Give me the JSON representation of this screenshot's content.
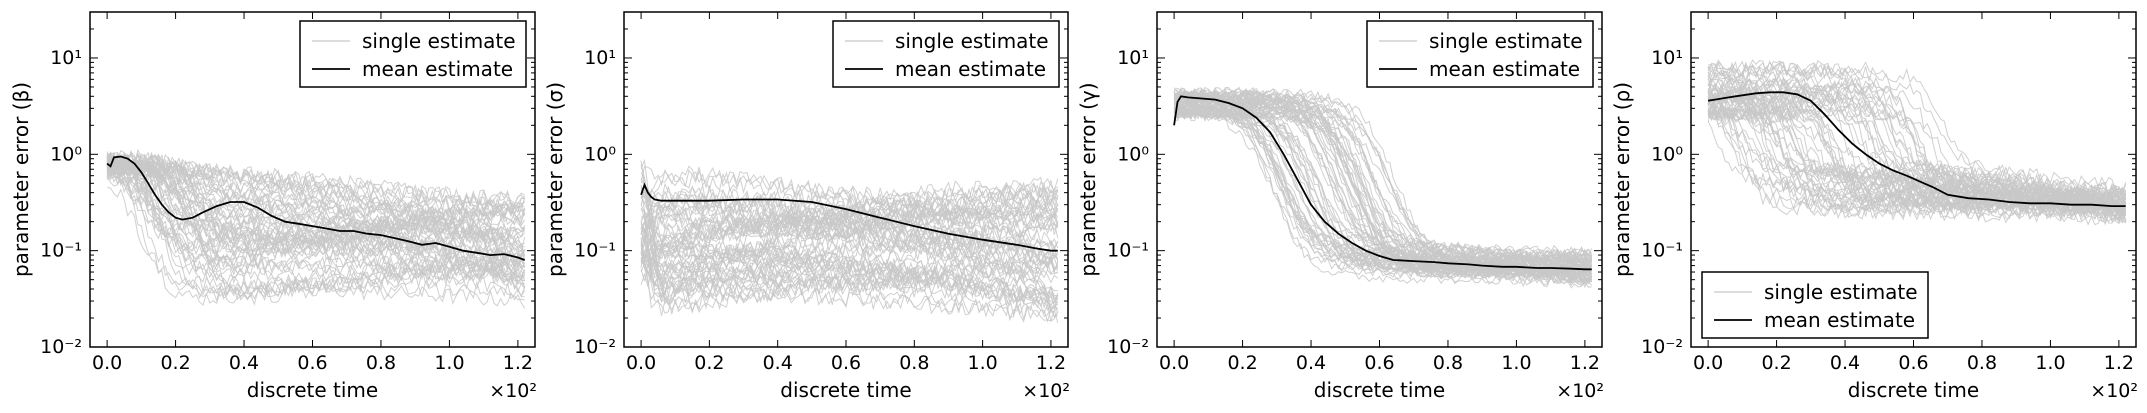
{
  "colors": {
    "single": "#c8c8c8",
    "mean": "#000000"
  },
  "chart_data": [
    {
      "type": "line",
      "xlabel": "discrete time",
      "ylabel": "parameter error (β)",
      "xscale_label": "×10²",
      "yscale": "log",
      "ylim": [
        0.01,
        30
      ],
      "xlim": [
        -5,
        125
      ],
      "xticks": [
        0,
        20,
        40,
        60,
        80,
        100,
        120
      ],
      "xtick_labels": [
        "0.0",
        "0.2",
        "0.4",
        "0.6",
        "0.8",
        "1.0",
        "1.2"
      ],
      "yticks": [
        0.01,
        0.1,
        1,
        10
      ],
      "ytick_labels": [
        "10⁻²",
        "10⁻¹",
        "10⁰",
        "10¹"
      ],
      "legend": [
        "single estimate",
        "mean estimate"
      ],
      "legend_position": "top-right",
      "series": [
        {
          "name": "mean estimate",
          "x": [
            0,
            1,
            2,
            4,
            6,
            8,
            10,
            12,
            14,
            16,
            18,
            20,
            22,
            25,
            28,
            32,
            36,
            40,
            44,
            48,
            52,
            56,
            60,
            64,
            68,
            72,
            76,
            80,
            84,
            88,
            92,
            96,
            100,
            104,
            108,
            112,
            116,
            120,
            122
          ],
          "y": [
            0.8,
            0.75,
            0.93,
            0.95,
            0.9,
            0.8,
            0.65,
            0.5,
            0.38,
            0.3,
            0.25,
            0.22,
            0.21,
            0.22,
            0.25,
            0.29,
            0.32,
            0.32,
            0.28,
            0.23,
            0.2,
            0.19,
            0.18,
            0.17,
            0.16,
            0.16,
            0.15,
            0.145,
            0.135,
            0.125,
            0.115,
            0.12,
            0.11,
            0.1,
            0.095,
            0.09,
            0.092,
            0.085,
            0.08
          ]
        }
      ],
      "single": {
        "count": 60,
        "x_end": 122,
        "noise": 0.2,
        "start": [
          0.7,
          0.95
        ],
        "drop_time": [
          8,
          30
        ],
        "drop_width": 4,
        "mid": [
          0.02,
          0.8
        ],
        "end": [
          0.03,
          0.35
        ]
      }
    },
    {
      "type": "line",
      "xlabel": "discrete time",
      "ylabel": "parameter error (σ)",
      "xscale_label": "×10²",
      "yscale": "log",
      "ylim": [
        0.01,
        30
      ],
      "xlim": [
        -5,
        125
      ],
      "xticks": [
        0,
        20,
        40,
        60,
        80,
        100,
        120
      ],
      "xtick_labels": [
        "0.0",
        "0.2",
        "0.4",
        "0.6",
        "0.8",
        "1.0",
        "1.2"
      ],
      "yticks": [
        0.01,
        0.1,
        1,
        10
      ],
      "ytick_labels": [
        "10⁻²",
        "10⁻¹",
        "10⁰",
        "10¹"
      ],
      "legend": [
        "single estimate",
        "mean estimate"
      ],
      "legend_position": "top-right",
      "series": [
        {
          "name": "mean estimate",
          "x": [
            0,
            1,
            2,
            3,
            4,
            6,
            10,
            20,
            30,
            40,
            50,
            60,
            70,
            80,
            90,
            100,
            110,
            116,
            120,
            122
          ],
          "y": [
            0.38,
            0.48,
            0.4,
            0.36,
            0.34,
            0.33,
            0.33,
            0.33,
            0.34,
            0.34,
            0.32,
            0.27,
            0.22,
            0.18,
            0.15,
            0.13,
            0.115,
            0.105,
            0.1,
            0.1
          ]
        }
      ],
      "single": {
        "count": 60,
        "x_end": 122,
        "noise": 0.22,
        "start": [
          0.05,
          0.9
        ],
        "drop_time": [
          1,
          4
        ],
        "drop_width": 1,
        "mid": [
          0.02,
          0.7
        ],
        "end": [
          0.02,
          0.5
        ]
      }
    },
    {
      "type": "line",
      "xlabel": "discrete time",
      "ylabel": "parameter error (γ)",
      "xscale_label": "×10²",
      "yscale": "log",
      "ylim": [
        0.01,
        30
      ],
      "xlim": [
        -5,
        125
      ],
      "xticks": [
        0,
        20,
        40,
        60,
        80,
        100,
        120
      ],
      "xtick_labels": [
        "0.0",
        "0.2",
        "0.4",
        "0.6",
        "0.8",
        "1.0",
        "1.2"
      ],
      "yticks": [
        0.01,
        0.1,
        1,
        10
      ],
      "ytick_labels": [
        "10⁻²",
        "10⁻¹",
        "10⁰",
        "10¹"
      ],
      "legend": [
        "single estimate",
        "mean estimate"
      ],
      "legend_position": "top-right",
      "series": [
        {
          "name": "mean estimate",
          "x": [
            0,
            1,
            2,
            4,
            8,
            12,
            16,
            20,
            24,
            28,
            32,
            36,
            40,
            44,
            48,
            52,
            56,
            60,
            64,
            70,
            76,
            80,
            86,
            90,
            96,
            100,
            106,
            110,
            116,
            120,
            122
          ],
          "y": [
            2,
            3.5,
            4.0,
            3.9,
            3.8,
            3.7,
            3.4,
            3.0,
            2.4,
            1.7,
            1.0,
            0.55,
            0.3,
            0.2,
            0.15,
            0.12,
            0.1,
            0.088,
            0.08,
            0.078,
            0.076,
            0.074,
            0.072,
            0.07,
            0.068,
            0.068,
            0.066,
            0.066,
            0.065,
            0.064,
            0.064
          ]
        }
      ],
      "single": {
        "count": 70,
        "x_end": 122,
        "noise": 0.12,
        "start": [
          2.5,
          4.5
        ],
        "drop_time": [
          28,
          66
        ],
        "drop_width": 5,
        "mid": [
          0.05,
          0.13
        ],
        "end": [
          0.045,
          0.1
        ]
      }
    },
    {
      "type": "line",
      "xlabel": "discrete time",
      "ylabel": "parameter error (ρ)",
      "xscale_label": "×10²",
      "yscale": "log",
      "ylim": [
        0.01,
        30
      ],
      "xlim": [
        -5,
        125
      ],
      "xticks": [
        0,
        20,
        40,
        60,
        80,
        100,
        120
      ],
      "xtick_labels": [
        "0.0",
        "0.2",
        "0.4",
        "0.6",
        "0.8",
        "1.0",
        "1.2"
      ],
      "yticks": [
        0.01,
        0.1,
        1,
        10
      ],
      "ytick_labels": [
        "10⁻²",
        "10⁻¹",
        "10⁰",
        "10¹"
      ],
      "legend": [
        "single estimate",
        "mean estimate"
      ],
      "legend_position": "lower-left",
      "series": [
        {
          "name": "mean estimate",
          "x": [
            0,
            2,
            6,
            10,
            14,
            18,
            22,
            26,
            30,
            34,
            38,
            42,
            46,
            50,
            54,
            58,
            62,
            66,
            70,
            76,
            82,
            88,
            94,
            100,
            106,
            112,
            118,
            122
          ],
          "y": [
            3.6,
            3.7,
            3.9,
            4.1,
            4.3,
            4.4,
            4.4,
            4.2,
            3.6,
            2.6,
            1.8,
            1.3,
            1.0,
            0.8,
            0.68,
            0.6,
            0.52,
            0.45,
            0.38,
            0.35,
            0.34,
            0.32,
            0.31,
            0.31,
            0.3,
            0.3,
            0.29,
            0.29
          ]
        }
      ],
      "single": {
        "count": 60,
        "x_end": 122,
        "noise": 0.18,
        "start": [
          2.5,
          8
        ],
        "drop_time": [
          2,
          70
        ],
        "drop_width": 3,
        "mid": [
          0.25,
          0.85
        ],
        "end": [
          0.2,
          0.45
        ]
      }
    }
  ]
}
